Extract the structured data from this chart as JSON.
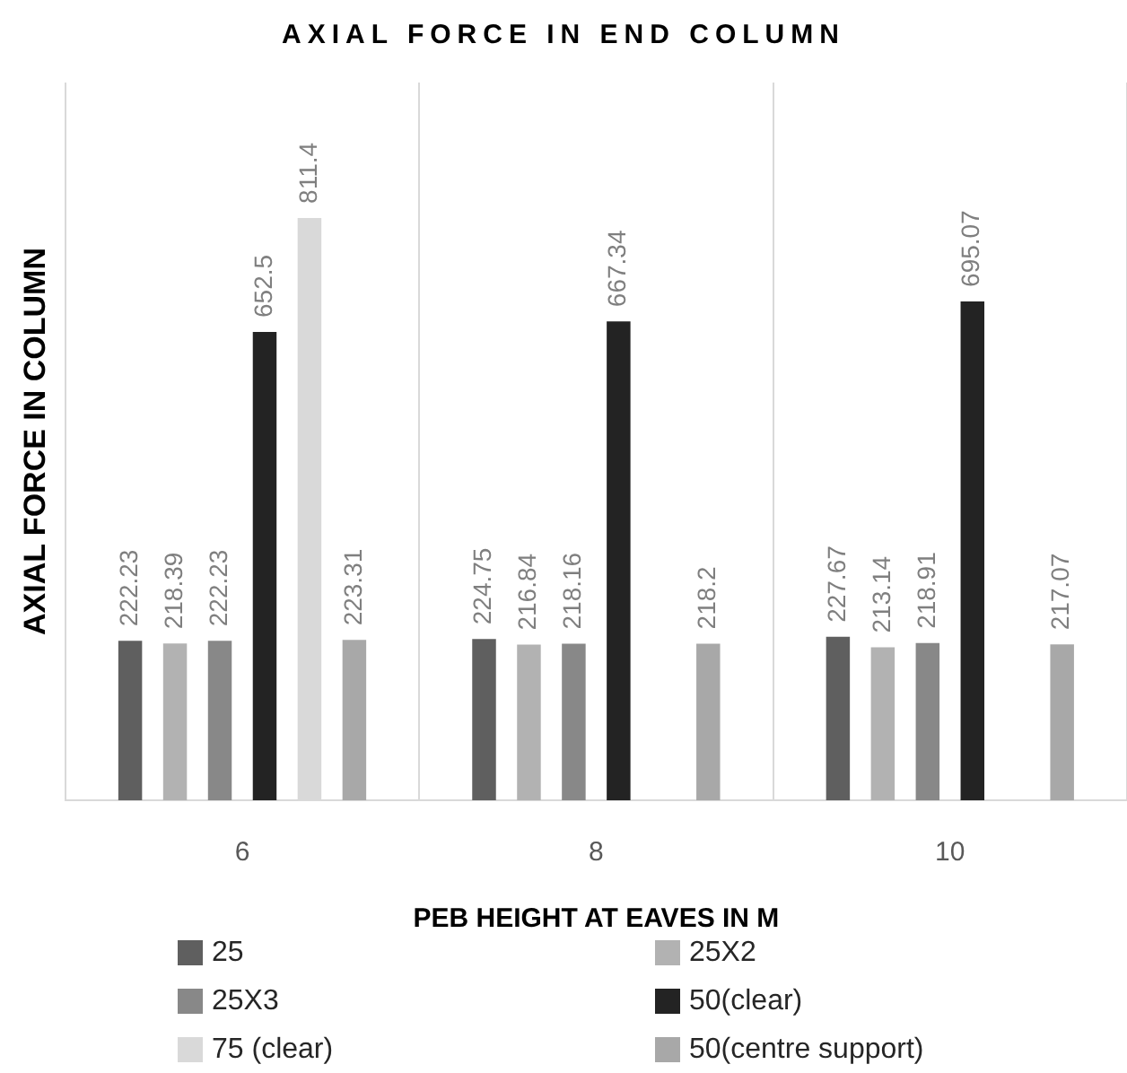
{
  "chart_data": {
    "type": "bar",
    "title": "AXIAL FORCE IN END COLUMN",
    "xlabel": "PEB HEIGHT AT EAVES IN M",
    "ylabel": "AXIAL FORCE IN COLUMN",
    "categories": [
      "6",
      "8",
      "10"
    ],
    "series": [
      {
        "name": "25",
        "color": "#5f5f5f",
        "values": [
          222.23,
          224.75,
          227.67
        ]
      },
      {
        "name": "25X2",
        "color": "#b2b2b2",
        "values": [
          218.39,
          216.84,
          213.14
        ]
      },
      {
        "name": "25X3",
        "color": "#888888",
        "values": [
          222.23,
          218.16,
          218.91
        ]
      },
      {
        "name": "50(clear)",
        "color": "#232323",
        "values": [
          652.5,
          667.34,
          695.07
        ]
      },
      {
        "name": "75 (clear)",
        "color": "#d9d9d9",
        "values": [
          811.4,
          null,
          null
        ]
      },
      {
        "name": "50(centre support)",
        "color": "#a8a8a8",
        "values": [
          223.31,
          218.2,
          217.07
        ]
      }
    ],
    "ylim": [
      0,
      1000
    ],
    "tick_labels": "x",
    "grid": "x",
    "data_labels": true,
    "legend": "bottom"
  }
}
